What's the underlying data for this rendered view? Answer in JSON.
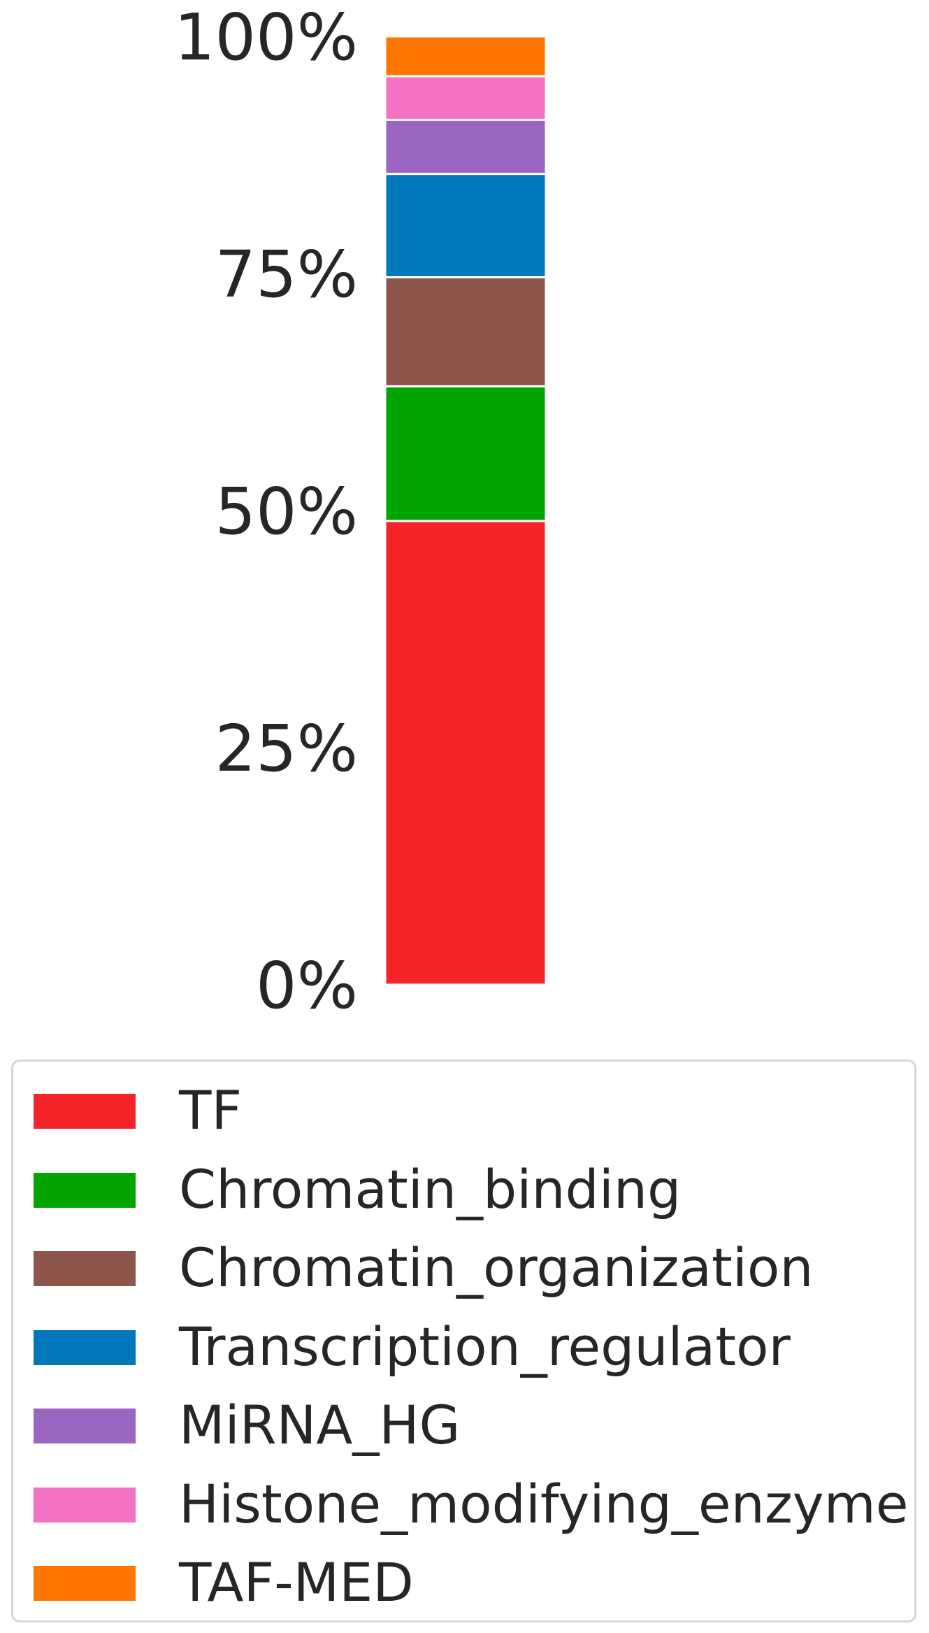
{
  "chart_data": {
    "type": "bar",
    "stacked": true,
    "categories": [
      ""
    ],
    "yticks": [
      "0%",
      "25%",
      "50%",
      "75%",
      "100%"
    ],
    "ylim": [
      0,
      100
    ],
    "series": [
      {
        "name": "TF",
        "values": [
          48.9
        ],
        "color": "#f52428"
      },
      {
        "name": "Chromatin_binding",
        "values": [
          14.2
        ],
        "color": "#02a302"
      },
      {
        "name": "Chromatin_organization",
        "values": [
          11.5
        ],
        "color": "#8e554a"
      },
      {
        "name": "Transcription_regulator",
        "values": [
          10.9
        ],
        "color": "#0077b8"
      },
      {
        "name": "MiRNA_HG",
        "values": [
          5.7
        ],
        "color": "#9b66c2"
      },
      {
        "name": "Histone_modifying_enzyme",
        "values": [
          4.6
        ],
        "color": "#f472c4"
      },
      {
        "name": "TAF-MED",
        "values": [
          4.2
        ],
        "color": "#ff7700"
      }
    ],
    "legend_position": "bottom",
    "grid": false
  }
}
